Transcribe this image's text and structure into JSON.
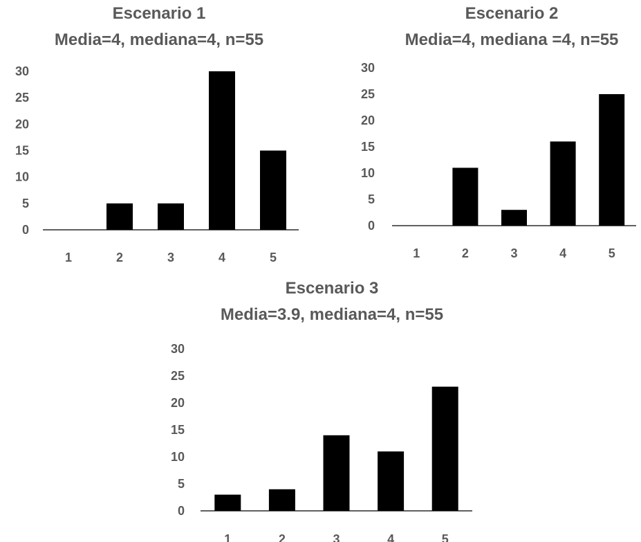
{
  "chart_data": [
    {
      "type": "bar",
      "title": "Escenario 1",
      "subtitle": "Media=4, mediana=4, n=55",
      "categories": [
        "1",
        "2",
        "3",
        "4",
        "5"
      ],
      "values": [
        0,
        5,
        5,
        30,
        15
      ],
      "ylim": [
        0,
        30
      ],
      "yticks": [
        0,
        5,
        10,
        15,
        20,
        25,
        30
      ],
      "xlabel": "",
      "ylabel": "",
      "grid": false,
      "colors": {
        "bar": "#000000",
        "text": "#595959"
      }
    },
    {
      "type": "bar",
      "title": "Escenario 2",
      "subtitle": "Media=4, mediana =4, n=55",
      "categories": [
        "1",
        "2",
        "3",
        "4",
        "5"
      ],
      "values": [
        0,
        11,
        3,
        16,
        25
      ],
      "ylim": [
        0,
        30
      ],
      "yticks": [
        0,
        5,
        10,
        15,
        20,
        25,
        30
      ],
      "xlabel": "",
      "ylabel": "",
      "grid": false,
      "colors": {
        "bar": "#000000",
        "text": "#595959"
      }
    },
    {
      "type": "bar",
      "title": "Escenario 3",
      "subtitle": "Media=3.9, mediana=4, n=55",
      "categories": [
        "1",
        "2",
        "3",
        "4",
        "5"
      ],
      "values": [
        3,
        4,
        14,
        11,
        23
      ],
      "ylim": [
        0,
        30
      ],
      "yticks": [
        0,
        5,
        10,
        15,
        20,
        25,
        30
      ],
      "xlabel": "",
      "ylabel": "",
      "grid": false,
      "colors": {
        "bar": "#000000",
        "text": "#595959"
      }
    }
  ]
}
